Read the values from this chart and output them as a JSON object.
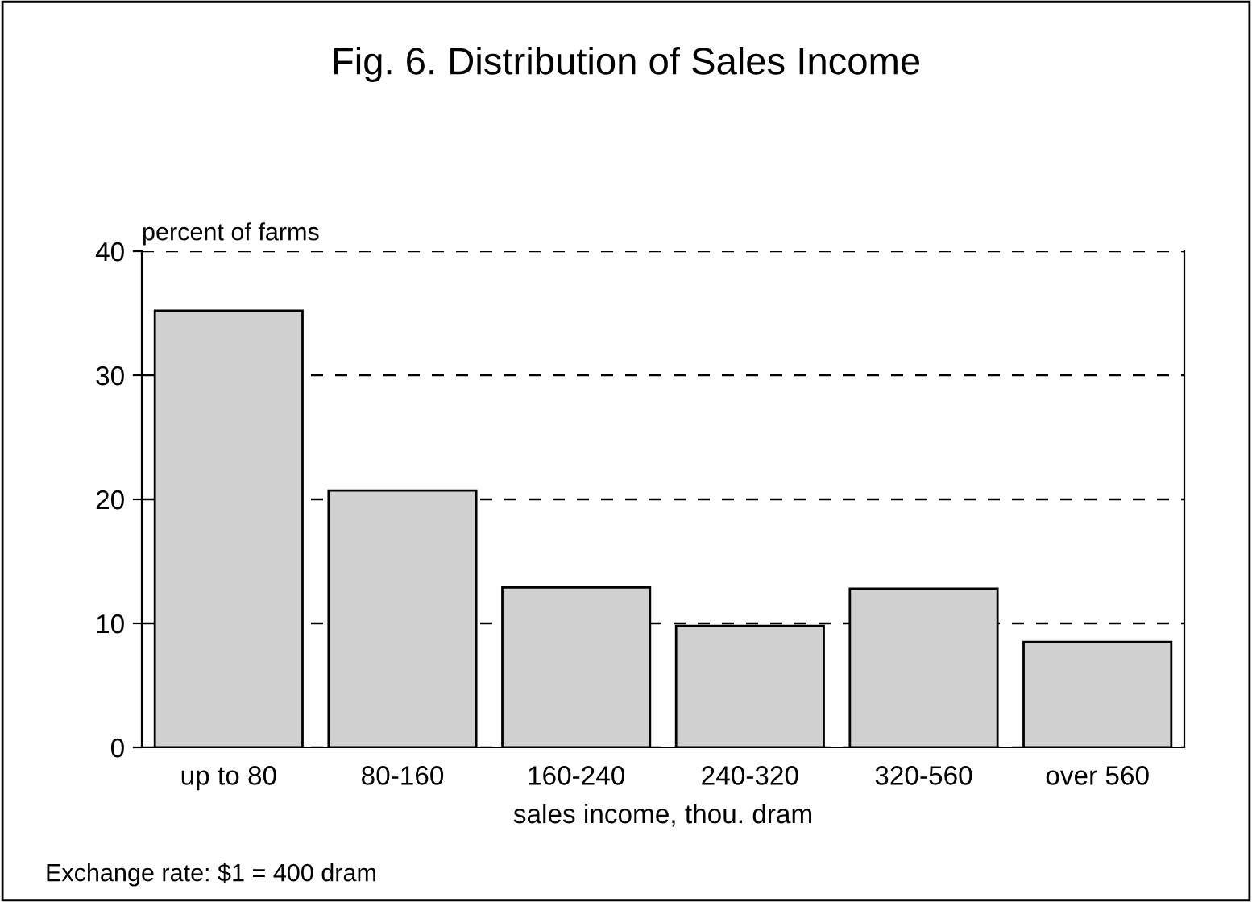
{
  "chart_data": {
    "type": "bar",
    "title": "Fig. 6. Distribution of Sales Income",
    "ylabel": "percent of farms",
    "xlabel": "sales income, thou. dram",
    "categories": [
      "up to 80",
      "80-160",
      "160-240",
      "240-320",
      "320-560",
      "over 560"
    ],
    "values": [
      35.2,
      20.7,
      12.9,
      9.8,
      12.8,
      8.5
    ],
    "color": "#d0d0d0",
    "ylim": [
      0,
      40
    ],
    "yticks": [
      0,
      10,
      20,
      30,
      40
    ],
    "grid": "y",
    "line_style": "dashed",
    "annotations": [
      "Exchange rate: $1 = 400 dram"
    ]
  }
}
